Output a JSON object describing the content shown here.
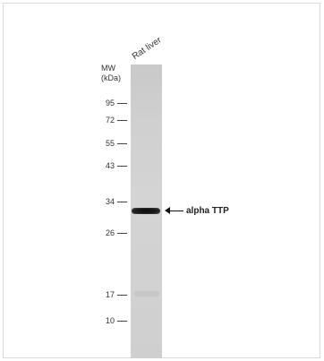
{
  "blot": {
    "lane_label": "Rat liver",
    "mw_title_line1": "MW",
    "mw_title_line2": "(kDa)",
    "band_label": "alpha TTP",
    "markers": [
      "95",
      "72",
      "55",
      "43",
      "34",
      "26",
      "17",
      "10"
    ]
  }
}
